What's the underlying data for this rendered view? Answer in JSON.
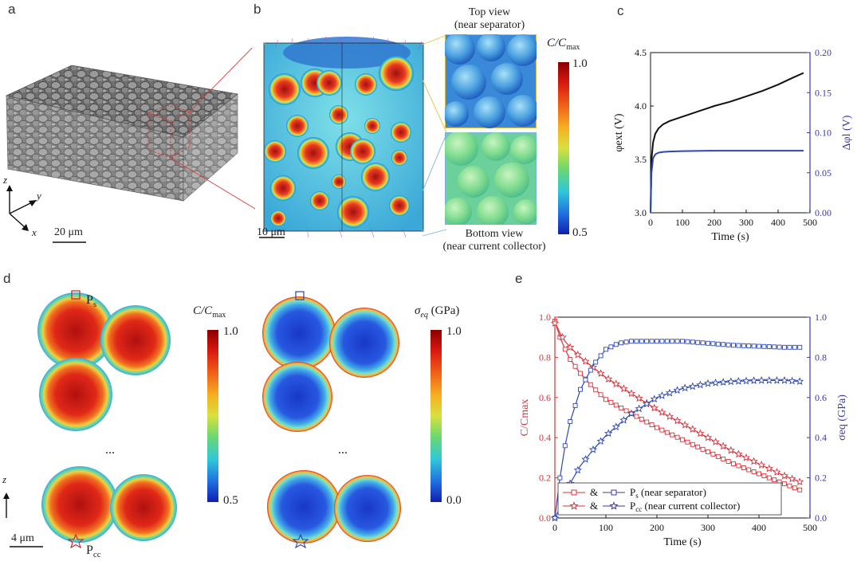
{
  "panels": {
    "a": {
      "label": "a",
      "axes": {
        "z": "z",
        "y": "y",
        "x": "x"
      },
      "scalebar": "20 μm"
    },
    "b": {
      "label": "b",
      "scalebar": "10 μm",
      "top_view": "Top view",
      "top_view_sub": "(near separator)",
      "bottom_view": "Bottom view",
      "bottom_view_sub": "(near current collector)",
      "colorbar_title": "C/C",
      "colorbar_title_sub": "max",
      "colorbar_max": "1.0",
      "colorbar_min": "0.5"
    },
    "c": {
      "label": "c"
    },
    "d": {
      "label": "d",
      "ps_label": "P",
      "ps_sub": "s",
      "pcc_label": "P",
      "pcc_sub": "cc",
      "ellipsis_left": "...",
      "ellipsis_right": "...",
      "scalebar": "4 μm",
      "z_axis": "z",
      "cb1_title": "C/C",
      "cb1_title_sub": "max",
      "cb1_max": "1.0",
      "cb1_min": "0.5",
      "cb2_title": "σ",
      "cb2_title_sub": "eq",
      "cb2_title_unit": " (GPa)",
      "cb2_max": "1.0",
      "cb2_min": "0.0"
    },
    "e": {
      "label": "e"
    }
  },
  "colors": {
    "red": "#d7333a",
    "blue": "#2c48b5",
    "black": "#111111",
    "axis_blue": "#3a3aa8"
  },
  "chart_data": [
    {
      "id": "c",
      "type": "line",
      "xlabel": "Time (s)",
      "ylabel_left": "φext (V)",
      "ylabel_right": "Δφl (V)",
      "xlim": [
        0,
        500
      ],
      "ylim_left": [
        3.0,
        4.5
      ],
      "ylim_right": [
        0.0,
        0.2
      ],
      "x_ticks": [
        "0",
        "100",
        "200",
        "300",
        "400",
        "500"
      ],
      "y_left_ticks": [
        "3.0",
        "3.5",
        "4.0",
        "4.5"
      ],
      "y_right_ticks": [
        "0.00",
        "0.05",
        "0.10",
        "0.15",
        "0.20"
      ],
      "series": [
        {
          "axis": "left",
          "color": "#111111",
          "x": [
            0,
            3,
            8,
            15,
            25,
            40,
            60,
            100,
            150,
            200,
            250,
            300,
            350,
            400,
            450,
            480
          ],
          "y": [
            3.0,
            3.5,
            3.66,
            3.74,
            3.79,
            3.83,
            3.86,
            3.9,
            3.95,
            4.0,
            4.04,
            4.09,
            4.14,
            4.2,
            4.27,
            4.31
          ]
        },
        {
          "axis": "right",
          "color": "#2c48b5",
          "x": [
            0,
            3,
            8,
            15,
            25,
            40,
            60,
            100,
            200,
            300,
            400,
            480
          ],
          "y": [
            0.0,
            0.05,
            0.068,
            0.073,
            0.075,
            0.076,
            0.0765,
            0.077,
            0.0775,
            0.0775,
            0.0775,
            0.0775
          ]
        }
      ]
    },
    {
      "id": "e",
      "type": "line",
      "xlabel": "Time (s)",
      "ylabel_left": "C/Cmax",
      "ylabel_right": "σeq (GPa)",
      "xlim": [
        0,
        500
      ],
      "ylim_left": [
        0.0,
        1.0
      ],
      "ylim_right": [
        0.0,
        1.0
      ],
      "x_ticks": [
        "0",
        "100",
        "200",
        "300",
        "400",
        "500"
      ],
      "y_left_ticks": [
        "0.0",
        "0.2",
        "0.4",
        "0.6",
        "0.8",
        "1.0"
      ],
      "y_right_ticks": [
        "0.0",
        "0.2",
        "0.4",
        "0.6",
        "0.8",
        "1.0"
      ],
      "legend": [
        {
          "amp": "&",
          "label": "P",
          "sub": "s",
          "rest": "  (near separator)",
          "marker": "square"
        },
        {
          "amp": "&",
          "label": "P",
          "sub": "cc",
          "rest": " (near current collector)",
          "marker": "star"
        }
      ],
      "series": [
        {
          "color": "#d7333a",
          "marker": "square",
          "x": [
            0,
            5,
            10,
            20,
            30,
            50,
            75,
            100,
            150,
            200,
            250,
            300,
            350,
            400,
            450,
            480
          ],
          "y": [
            0.98,
            0.94,
            0.9,
            0.84,
            0.79,
            0.72,
            0.65,
            0.59,
            0.52,
            0.45,
            0.39,
            0.33,
            0.27,
            0.22,
            0.17,
            0.14
          ]
        },
        {
          "color": "#d7333a",
          "marker": "star",
          "x": [
            0,
            5,
            10,
            20,
            30,
            50,
            75,
            100,
            150,
            200,
            250,
            300,
            350,
            400,
            450,
            480
          ],
          "y": [
            0.97,
            0.95,
            0.92,
            0.88,
            0.85,
            0.8,
            0.75,
            0.7,
            0.62,
            0.54,
            0.47,
            0.4,
            0.33,
            0.27,
            0.21,
            0.18
          ]
        },
        {
          "color": "#2c48b5",
          "marker": "square",
          "x": [
            0,
            5,
            10,
            20,
            30,
            50,
            75,
            100,
            125,
            150,
            200,
            250,
            300,
            350,
            400,
            450,
            480
          ],
          "y": [
            0.0,
            0.1,
            0.2,
            0.36,
            0.48,
            0.64,
            0.76,
            0.84,
            0.87,
            0.88,
            0.88,
            0.88,
            0.87,
            0.86,
            0.855,
            0.85,
            0.85
          ]
        },
        {
          "color": "#2c48b5",
          "marker": "star",
          "x": [
            0,
            10,
            25,
            50,
            75,
            100,
            150,
            200,
            250,
            300,
            350,
            400,
            450,
            480
          ],
          "y": [
            0.0,
            0.05,
            0.15,
            0.26,
            0.34,
            0.41,
            0.52,
            0.6,
            0.645,
            0.67,
            0.68,
            0.685,
            0.685,
            0.68
          ]
        }
      ]
    }
  ]
}
